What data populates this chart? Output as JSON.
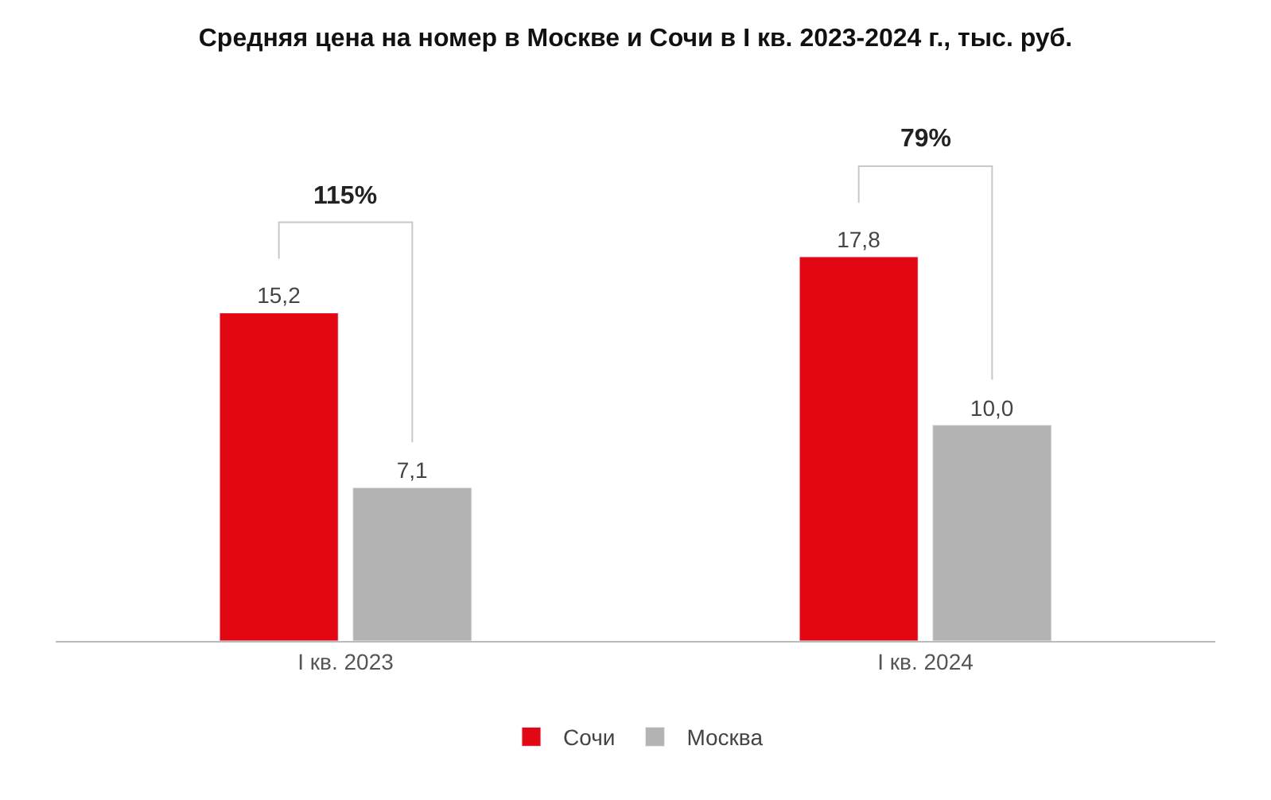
{
  "chart_data": {
    "type": "bar",
    "title": "Средняя цена на номер в Москве и Сочи в I кв. 2023-2024 г., тыс. руб.",
    "categories": [
      "I кв. 2023",
      "I кв. 2024"
    ],
    "series": [
      {
        "name": "Сочи",
        "color": "#e30613",
        "values": [
          15.2,
          17.8
        ],
        "value_labels": [
          "15,2",
          "17,8"
        ]
      },
      {
        "name": "Москва",
        "color": "#b3b3b3",
        "values": [
          7.1,
          10.0
        ],
        "value_labels": [
          "7,1",
          "10,0"
        ]
      }
    ],
    "annotations": [
      "115%",
      "79%"
    ],
    "legend": "bottom"
  }
}
